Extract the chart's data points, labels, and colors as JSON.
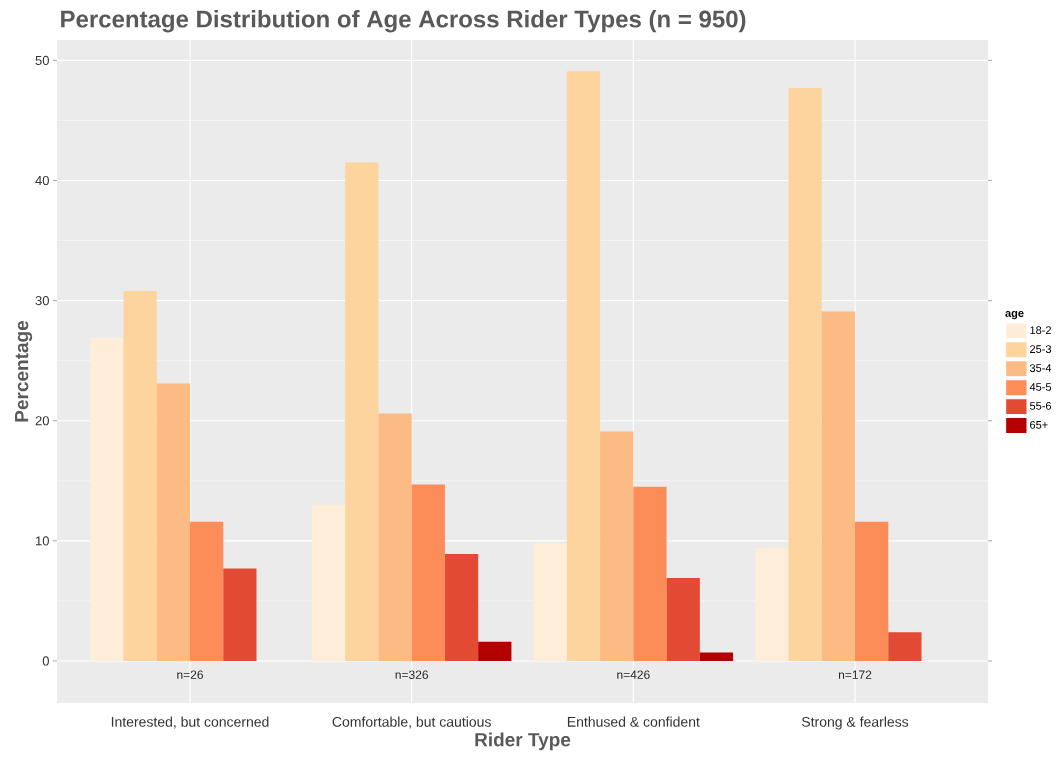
{
  "chart_data": {
    "type": "bar",
    "title": "Percentage Distribution of Age Across Rider Types (n = 950)",
    "xlabel": "Rider Type",
    "ylabel": "Percentage",
    "legend_title": "age",
    "categories": [
      "Interested, but concerned",
      "Comfortable, but cautious",
      "Enthused & confident",
      "Strong & fearless"
    ],
    "series": [
      {
        "name": "18-2",
        "color": "#feedd8",
        "values": [
          26.9,
          13.0,
          9.8,
          9.4
        ]
      },
      {
        "name": "25-3",
        "color": "#fdd49e",
        "values": [
          30.8,
          41.5,
          49.1,
          47.7
        ]
      },
      {
        "name": "35-4",
        "color": "#fcbb84",
        "values": [
          23.1,
          20.6,
          19.1,
          29.1
        ]
      },
      {
        "name": "45-5",
        "color": "#fc8d59",
        "values": [
          11.6,
          14.7,
          14.5,
          11.6
        ]
      },
      {
        "name": "55-6",
        "color": "#e34a33",
        "values": [
          7.7,
          8.9,
          6.9,
          2.4
        ]
      },
      {
        "name": "65+",
        "color": "#b30000",
        "values": [
          0,
          1.6,
          0.7,
          0
        ]
      }
    ],
    "ylim": [
      -3.5,
      51.7
    ],
    "yticks": [
      0,
      10,
      20,
      30,
      40,
      50
    ],
    "grid": true,
    "legend": "right",
    "annotations": [
      "n=26",
      "n=326",
      "n=426",
      "n=172"
    ]
  }
}
